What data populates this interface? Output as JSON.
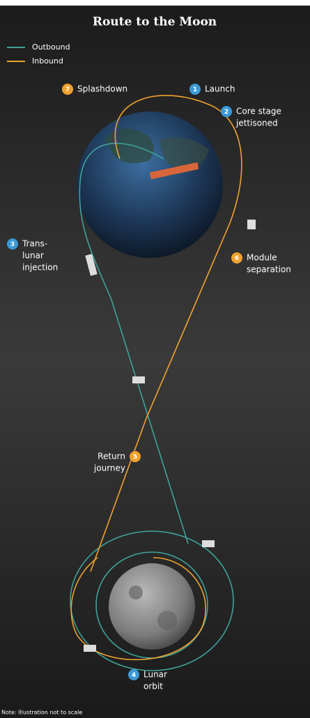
{
  "title": "Route to the Moon",
  "legend": [
    {
      "label": "Outbound",
      "color": "#3fa29a"
    },
    {
      "label": "Inbound",
      "color": "#f0a22e"
    }
  ],
  "steps": [
    {
      "number": 1,
      "label": [
        "Launch"
      ],
      "color": "#3b9ad6"
    },
    {
      "number": 2,
      "label": [
        "Core stage",
        "jettisoned"
      ],
      "color": "#3b9ad6"
    },
    {
      "number": 3,
      "label": [
        "Trans-",
        "lunar",
        "injection"
      ],
      "color": "#3b9ad6"
    },
    {
      "number": 4,
      "label": [
        "Lunar",
        "orbit"
      ],
      "color": "#3b9ad6"
    },
    {
      "number": 5,
      "label": [
        "Return",
        "journey"
      ],
      "color": "#f0a22e"
    },
    {
      "number": 6,
      "label": [
        "Module",
        "separation"
      ],
      "color": "#f0a22e"
    },
    {
      "number": 7,
      "label": [
        "Splashdown"
      ],
      "color": "#f0a22e"
    }
  ],
  "note": "Note: Illustration not to scale"
}
